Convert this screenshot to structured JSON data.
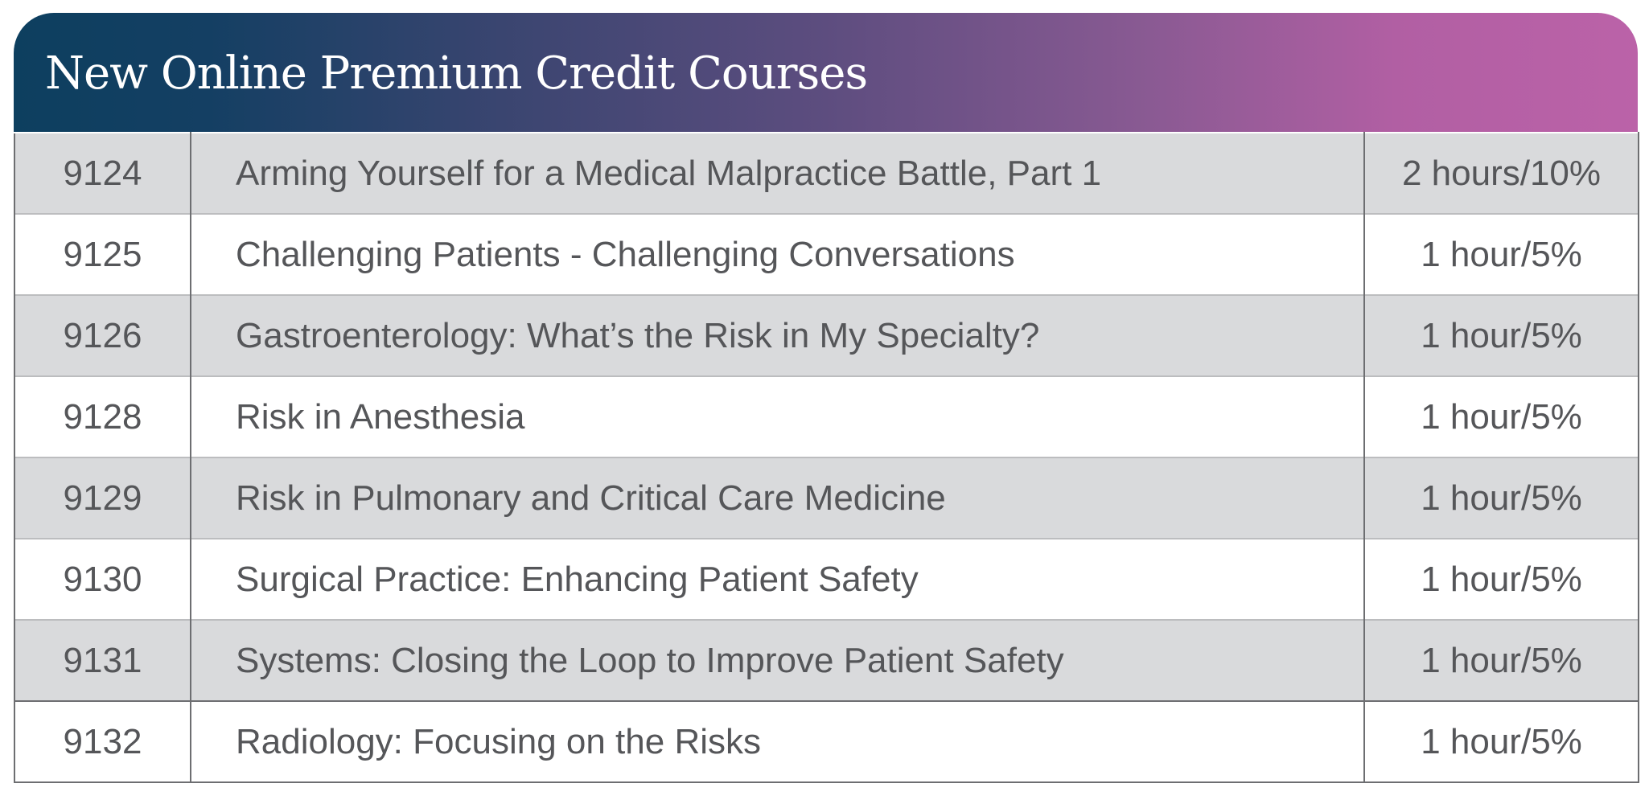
{
  "title": "New Online Premium Credit Courses",
  "colors": {
    "banner_start": "#0d3f5f",
    "banner_end": "#bb62a8",
    "row_shade": "#d9dadc",
    "text": "#555659"
  },
  "courses": [
    {
      "number": "9124",
      "title": "Arming Yourself for a Medical Malpractice Battle, Part 1",
      "credit": "2 hours/10%"
    },
    {
      "number": "9125",
      "title": "Challenging Patients - Challenging Conversations",
      "credit": "1 hour/5%"
    },
    {
      "number": "9126",
      "title": "Gastroenterology: What’s the Risk in My Specialty?",
      "credit": "1 hour/5%"
    },
    {
      "number": "9128",
      "title": "Risk in Anesthesia",
      "credit": "1 hour/5%"
    },
    {
      "number": "9129",
      "title": "Risk in Pulmonary and Critical Care Medicine",
      "credit": "1 hour/5%"
    },
    {
      "number": "9130",
      "title": "Surgical Practice: Enhancing Patient Safety",
      "credit": "1 hour/5%"
    },
    {
      "number": "9131",
      "title": "Systems: Closing the Loop to Improve Patient Safety",
      "credit": "1 hour/5%"
    },
    {
      "number": "9132",
      "title": "Radiology: Focusing on the Risks",
      "credit": "1 hour/5%"
    }
  ]
}
